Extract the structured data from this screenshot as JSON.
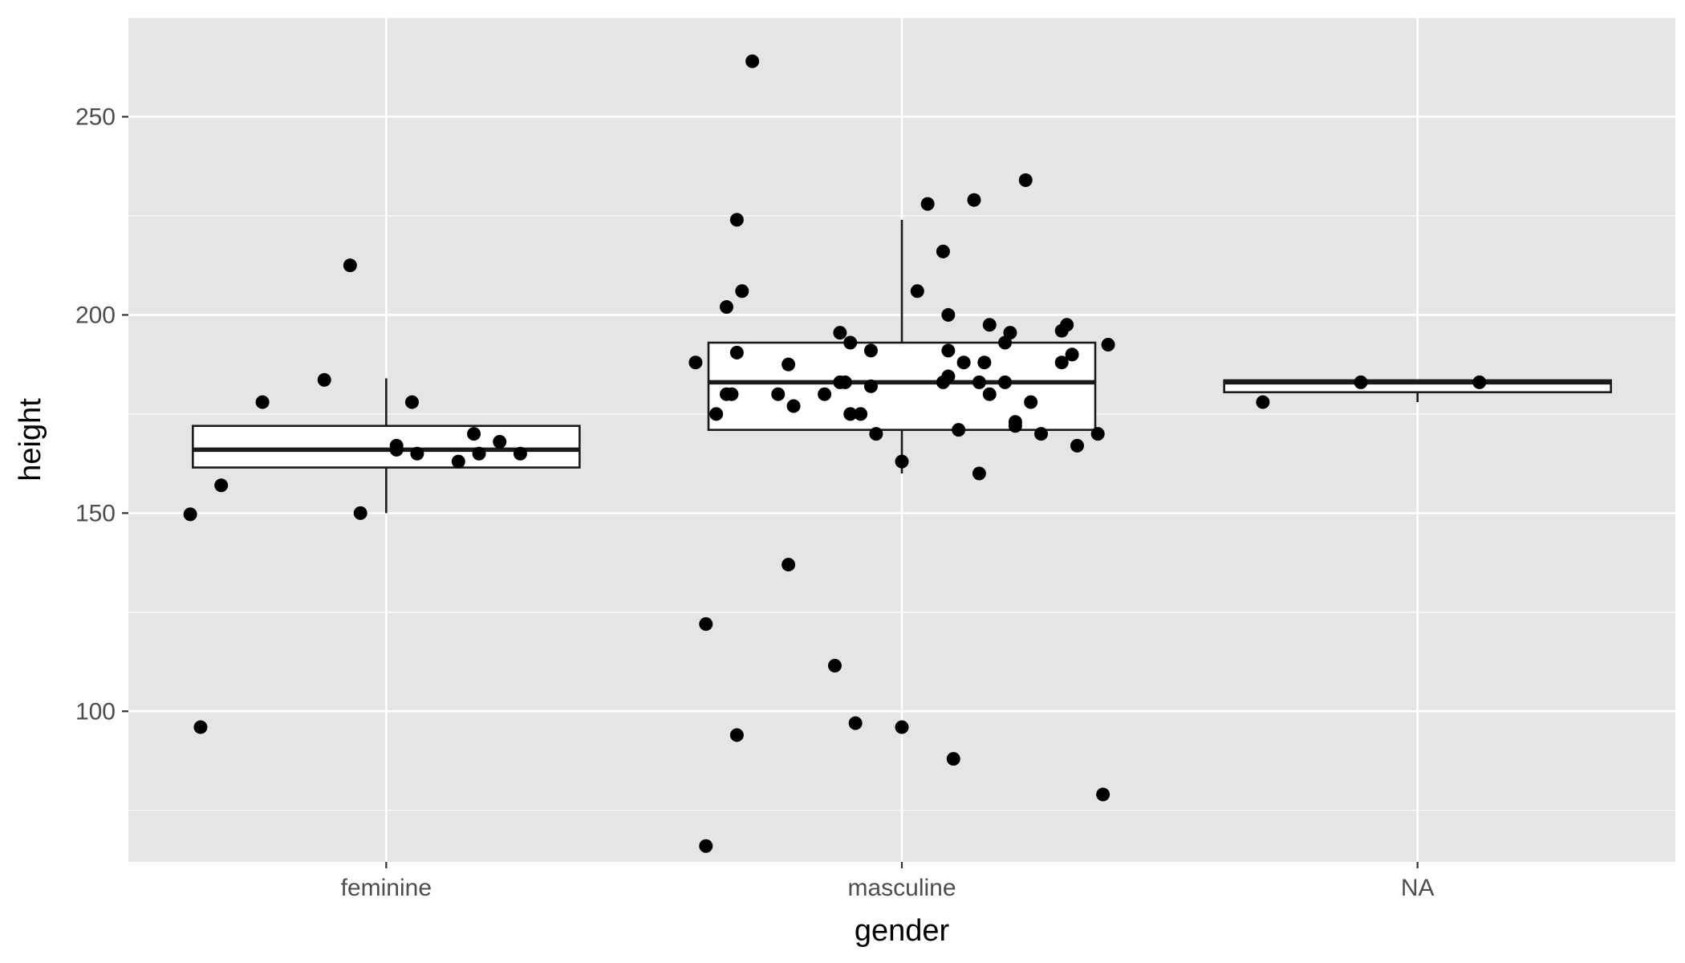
{
  "chart_data": {
    "type": "boxplot",
    "title": "",
    "xlabel": "gender",
    "ylabel": "height",
    "categories": [
      "feminine",
      "masculine",
      "NA"
    ],
    "ylim": [
      62,
      275
    ],
    "yticks": [
      100,
      150,
      200,
      250
    ],
    "grid": true,
    "background": "#E5E5E5",
    "grid_color": "#FFFFFF",
    "box_fill": "#FFFFFF",
    "line_color": "#1A1A1A",
    "point_color": "#000000",
    "boxes": [
      {
        "category": "feminine",
        "whisker_low": 150,
        "q1": 161.5,
        "median": 166,
        "q3": 172,
        "whisker_high": 184
      },
      {
        "category": "masculine",
        "whisker_low": 160,
        "q1": 171,
        "median": 183,
        "q3": 193,
        "whisker_high": 224
      },
      {
        "category": "NA",
        "whisker_low": 178,
        "q1": 180.5,
        "median": 183,
        "q3": 183.5,
        "whisker_high": 183.5
      }
    ],
    "points": [
      {
        "category": "feminine",
        "offset": -0.38,
        "y": 149.7
      },
      {
        "category": "feminine",
        "offset": -0.36,
        "y": 96
      },
      {
        "category": "feminine",
        "offset": -0.32,
        "y": 157
      },
      {
        "category": "feminine",
        "offset": -0.24,
        "y": 178
      },
      {
        "category": "feminine",
        "offset": -0.12,
        "y": 183.6
      },
      {
        "category": "feminine",
        "offset": -0.07,
        "y": 212.5
      },
      {
        "category": "feminine",
        "offset": -0.05,
        "y": 150
      },
      {
        "category": "feminine",
        "offset": 0.02,
        "y": 166
      },
      {
        "category": "feminine",
        "offset": 0.02,
        "y": 167
      },
      {
        "category": "feminine",
        "offset": 0.05,
        "y": 178
      },
      {
        "category": "feminine",
        "offset": 0.06,
        "y": 165
      },
      {
        "category": "feminine",
        "offset": 0.14,
        "y": 163
      },
      {
        "category": "feminine",
        "offset": 0.17,
        "y": 170
      },
      {
        "category": "feminine",
        "offset": 0.18,
        "y": 165
      },
      {
        "category": "feminine",
        "offset": 0.22,
        "y": 168
      },
      {
        "category": "feminine",
        "offset": 0.26,
        "y": 165
      },
      {
        "category": "masculine",
        "offset": -0.4,
        "y": 188
      },
      {
        "category": "masculine",
        "offset": -0.38,
        "y": 122
      },
      {
        "category": "masculine",
        "offset": -0.38,
        "y": 66
      },
      {
        "category": "masculine",
        "offset": -0.36,
        "y": 175
      },
      {
        "category": "masculine",
        "offset": -0.34,
        "y": 180
      },
      {
        "category": "masculine",
        "offset": -0.34,
        "y": 202
      },
      {
        "category": "masculine",
        "offset": -0.33,
        "y": 180
      },
      {
        "category": "masculine",
        "offset": -0.32,
        "y": 94
      },
      {
        "category": "masculine",
        "offset": -0.32,
        "y": 190.5
      },
      {
        "category": "masculine",
        "offset": -0.32,
        "y": 224
      },
      {
        "category": "masculine",
        "offset": -0.31,
        "y": 206
      },
      {
        "category": "masculine",
        "offset": -0.29,
        "y": 264
      },
      {
        "category": "masculine",
        "offset": -0.24,
        "y": 180
      },
      {
        "category": "masculine",
        "offset": -0.22,
        "y": 137
      },
      {
        "category": "masculine",
        "offset": -0.22,
        "y": 187.5
      },
      {
        "category": "masculine",
        "offset": -0.21,
        "y": 177
      },
      {
        "category": "masculine",
        "offset": -0.15,
        "y": 180
      },
      {
        "category": "masculine",
        "offset": -0.13,
        "y": 111.5
      },
      {
        "category": "masculine",
        "offset": -0.12,
        "y": 195.5
      },
      {
        "category": "masculine",
        "offset": -0.12,
        "y": 183
      },
      {
        "category": "masculine",
        "offset": -0.11,
        "y": 183
      },
      {
        "category": "masculine",
        "offset": -0.1,
        "y": 193
      },
      {
        "category": "masculine",
        "offset": -0.1,
        "y": 175
      },
      {
        "category": "masculine",
        "offset": -0.09,
        "y": 97
      },
      {
        "category": "masculine",
        "offset": -0.08,
        "y": 175
      },
      {
        "category": "masculine",
        "offset": -0.06,
        "y": 191
      },
      {
        "category": "masculine",
        "offset": -0.06,
        "y": 182
      },
      {
        "category": "masculine",
        "offset": -0.05,
        "y": 170
      },
      {
        "category": "masculine",
        "offset": 0,
        "y": 96
      },
      {
        "category": "masculine",
        "offset": 0,
        "y": 163
      },
      {
        "category": "masculine",
        "offset": 0.03,
        "y": 206
      },
      {
        "category": "masculine",
        "offset": 0.05,
        "y": 228
      },
      {
        "category": "masculine",
        "offset": 0.08,
        "y": 216
      },
      {
        "category": "masculine",
        "offset": 0.08,
        "y": 183
      },
      {
        "category": "masculine",
        "offset": 0.09,
        "y": 191
      },
      {
        "category": "masculine",
        "offset": 0.09,
        "y": 200
      },
      {
        "category": "masculine",
        "offset": 0.09,
        "y": 184.5
      },
      {
        "category": "masculine",
        "offset": 0.1,
        "y": 88
      },
      {
        "category": "masculine",
        "offset": 0.11,
        "y": 171
      },
      {
        "category": "masculine",
        "offset": 0.12,
        "y": 188
      },
      {
        "category": "masculine",
        "offset": 0.14,
        "y": 229
      },
      {
        "category": "masculine",
        "offset": 0.15,
        "y": 160
      },
      {
        "category": "masculine",
        "offset": 0.15,
        "y": 183
      },
      {
        "category": "masculine",
        "offset": 0.16,
        "y": 188
      },
      {
        "category": "masculine",
        "offset": 0.17,
        "y": 180
      },
      {
        "category": "masculine",
        "offset": 0.17,
        "y": 197.5
      },
      {
        "category": "masculine",
        "offset": 0.2,
        "y": 193
      },
      {
        "category": "masculine",
        "offset": 0.2,
        "y": 183
      },
      {
        "category": "masculine",
        "offset": 0.21,
        "y": 195.5
      },
      {
        "category": "masculine",
        "offset": 0.22,
        "y": 172
      },
      {
        "category": "masculine",
        "offset": 0.22,
        "y": 173
      },
      {
        "category": "masculine",
        "offset": 0.24,
        "y": 234
      },
      {
        "category": "masculine",
        "offset": 0.25,
        "y": 178
      },
      {
        "category": "masculine",
        "offset": 0.27,
        "y": 170
      },
      {
        "category": "masculine",
        "offset": 0.31,
        "y": 196
      },
      {
        "category": "masculine",
        "offset": 0.31,
        "y": 188
      },
      {
        "category": "masculine",
        "offset": 0.32,
        "y": 197.5
      },
      {
        "category": "masculine",
        "offset": 0.33,
        "y": 190
      },
      {
        "category": "masculine",
        "offset": 0.34,
        "y": 167
      },
      {
        "category": "masculine",
        "offset": 0.38,
        "y": 170
      },
      {
        "category": "masculine",
        "offset": 0.39,
        "y": 79
      },
      {
        "category": "masculine",
        "offset": 0.4,
        "y": 192.5
      },
      {
        "category": "NA",
        "offset": -0.3,
        "y": 178
      },
      {
        "category": "NA",
        "offset": -0.11,
        "y": 183
      },
      {
        "category": "NA",
        "offset": 0.12,
        "y": 183
      }
    ]
  }
}
